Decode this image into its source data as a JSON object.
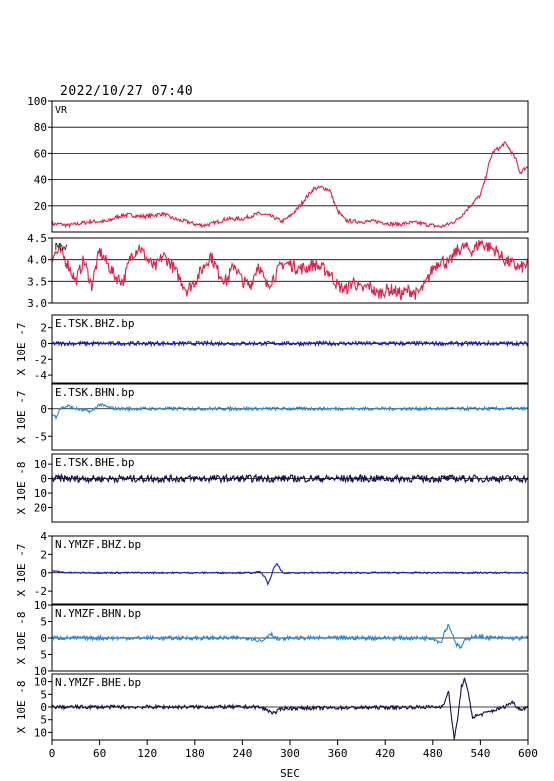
{
  "header": {
    "datetime": "2022/10/27 07:40"
  },
  "chart_data": {
    "type": "line",
    "x_range": [
      0,
      600
    ],
    "x_ticks": [
      0,
      60,
      120,
      180,
      240,
      300,
      360,
      420,
      480,
      540,
      600
    ],
    "xlabel": "SEC",
    "panels": [
      {
        "id": "vr",
        "label": "VR",
        "ylabel": "",
        "color": "#e0204a",
        "ylim": [
          0,
          100
        ],
        "yticks": [
          20,
          40,
          60,
          80,
          100
        ],
        "ytick_labels": [
          "20",
          "40",
          "60",
          "80",
          "100"
        ],
        "grid_y": [
          20,
          40,
          60,
          80
        ],
        "x": [
          0,
          10,
          20,
          30,
          40,
          50,
          60,
          70,
          80,
          90,
          100,
          110,
          120,
          130,
          140,
          150,
          160,
          170,
          180,
          190,
          200,
          210,
          220,
          230,
          240,
          250,
          260,
          270,
          280,
          290,
          300,
          310,
          320,
          330,
          340,
          350,
          360,
          370,
          380,
          390,
          400,
          410,
          420,
          430,
          440,
          450,
          460,
          470,
          480,
          490,
          500,
          510,
          520,
          530,
          540,
          545,
          550,
          555,
          560,
          565,
          570,
          575,
          580,
          585,
          590,
          595,
          600
        ],
        "y": [
          6,
          6,
          5,
          6,
          7,
          8,
          8,
          8,
          11,
          13,
          13,
          12,
          12,
          13,
          14,
          11,
          9,
          8,
          6,
          5,
          6,
          8,
          10,
          10,
          10,
          12,
          14,
          13,
          11,
          8,
          12,
          18,
          26,
          33,
          34,
          32,
          16,
          9,
          8,
          8,
          8,
          8,
          7,
          6,
          6,
          7,
          7,
          6,
          5,
          4,
          6,
          9,
          15,
          22,
          28,
          38,
          50,
          60,
          63,
          64,
          68,
          65,
          60,
          55,
          45,
          48,
          50
        ],
        "noise": 1.5
      },
      {
        "id": "mw",
        "label": "Mw",
        "ylabel": "",
        "color": "#e0204a",
        "ylim": [
          3.0,
          4.5
        ],
        "yticks": [
          3.0,
          3.5,
          4.0,
          4.5
        ],
        "ytick_labels": [
          "3.0",
          "3.5",
          "4.0",
          "4.5"
        ],
        "grid_y": [
          3.5,
          4.0
        ],
        "x": [
          0,
          10,
          20,
          30,
          40,
          50,
          60,
          70,
          80,
          90,
          100,
          110,
          120,
          130,
          140,
          150,
          160,
          170,
          180,
          190,
          200,
          210,
          220,
          230,
          240,
          250,
          260,
          270,
          280,
          290,
          300,
          310,
          320,
          330,
          340,
          350,
          360,
          370,
          380,
          390,
          400,
          410,
          420,
          430,
          440,
          450,
          460,
          470,
          480,
          490,
          500,
          510,
          520,
          530,
          540,
          550,
          560,
          570,
          580,
          590,
          600
        ],
        "y": [
          4.1,
          4.2,
          3.9,
          3.5,
          4.0,
          3.4,
          4.2,
          3.9,
          3.6,
          3.5,
          4.1,
          4.3,
          4.0,
          3.8,
          4.1,
          3.9,
          3.6,
          3.3,
          3.5,
          3.8,
          4.1,
          3.7,
          3.5,
          3.9,
          3.5,
          3.4,
          3.9,
          3.4,
          3.6,
          3.9,
          3.9,
          3.8,
          3.8,
          3.9,
          3.8,
          3.7,
          3.4,
          3.3,
          3.5,
          3.3,
          3.4,
          3.2,
          3.3,
          3.3,
          3.2,
          3.3,
          3.2,
          3.4,
          3.8,
          4.0,
          3.9,
          4.2,
          4.3,
          4.2,
          4.4,
          4.3,
          4.2,
          4.0,
          3.9,
          3.8,
          3.9
        ],
        "noise": 0.15
      },
      {
        "id": "e-tsk-bhz",
        "label": "E.TSK.BHZ.bp",
        "ylabel": "X 10E -7",
        "color": "#1b1bb0",
        "ylim": [
          -5,
          3.6
        ],
        "yticks": [
          -4,
          -2,
          0,
          2
        ],
        "ytick_labels": [
          "-4",
          "-2",
          "0",
          "2"
        ],
        "zero_line": true,
        "x": [
          0,
          600
        ],
        "y": [
          0,
          0
        ],
        "noise": 0.25
      },
      {
        "id": "e-tsk-bhn",
        "label": "E.TSK.BHN.bp",
        "ylabel": "X 10E -7",
        "color": "#2a8ad4",
        "ylim": [
          -7.5,
          4.5
        ],
        "yticks": [
          -5,
          0
        ],
        "ytick_labels": [
          "-5",
          "0"
        ],
        "zero_line": true,
        "x": [
          0,
          5,
          10,
          20,
          30,
          40,
          50,
          60,
          70,
          80,
          600
        ],
        "y": [
          -1,
          -1.5,
          0,
          0.5,
          0,
          -0.3,
          -0.5,
          0.8,
          0.3,
          0,
          0
        ],
        "noise": 0.3
      },
      {
        "id": "e-tsk-bhe",
        "label": "E.TSK.BHE.bp",
        "ylabel": "X 10E -8",
        "color": "#10104a",
        "ylim": [
          -30,
          17
        ],
        "yticks": [
          -20,
          -10,
          0,
          10
        ],
        "ytick_labels": [
          "20",
          "10",
          "0",
          "10"
        ],
        "zero_line": true,
        "x": [
          0,
          600
        ],
        "y": [
          0,
          0
        ],
        "noise": 2.5
      },
      {
        "id": "n-ymzf-bhz",
        "label": "N.YMZF.BHZ.bp",
        "ylabel": "X 10E -7",
        "color": "#1b1bb0",
        "ylim": [
          -3.4,
          4
        ],
        "yticks": [
          -2,
          0,
          2,
          4
        ],
        "ytick_labels": [
          "-2",
          "0",
          "2",
          "4"
        ],
        "zero_line": true,
        "x": [
          0,
          10,
          20,
          60,
          150,
          240,
          255,
          262,
          268,
          272,
          276,
          280,
          284,
          288,
          292,
          300,
          310,
          600
        ],
        "y": [
          0.2,
          0.1,
          0,
          0,
          0,
          0,
          0,
          0.1,
          -0.4,
          -1.2,
          -0.5,
          0.6,
          1.0,
          0.3,
          -0.1,
          0,
          0,
          0
        ],
        "noise": 0.08
      },
      {
        "id": "n-ymzf-bhn",
        "label": "N.YMZF.BHN.bp",
        "ylabel": "X 10E -8",
        "color": "#2a8ad4",
        "ylim": [
          -10,
          10
        ],
        "yticks": [
          -10,
          -5,
          0,
          5,
          10
        ],
        "ytick_labels": [
          "10",
          "5",
          "0",
          "5",
          "10"
        ],
        "zero_line": true,
        "x": [
          0,
          250,
          265,
          275,
          285,
          300,
          480,
          490,
          495,
          500,
          505,
          510,
          515,
          520,
          530,
          560,
          600
        ],
        "y": [
          0,
          0,
          -1,
          1.5,
          -0.5,
          0,
          0,
          -1.5,
          2,
          4,
          1,
          -2,
          -3,
          -1,
          0.5,
          0,
          0
        ],
        "noise": 0.6
      },
      {
        "id": "n-ymzf-bhe",
        "label": "N.YMZF.BHE.bp",
        "ylabel": "X 10E -8",
        "color": "#10104a",
        "ylim": [
          -13,
          13
        ],
        "yticks": [
          -10,
          -5,
          0,
          5,
          10
        ],
        "ytick_labels": [
          "10",
          "5",
          "0",
          "5",
          "10"
        ],
        "zero_line": true,
        "x": [
          0,
          260,
          270,
          280,
          290,
          490,
          495,
          500,
          503,
          507,
          512,
          516,
          520,
          525,
          530,
          540,
          570,
          580,
          590,
          600
        ],
        "y": [
          0,
          0,
          -1,
          -2.5,
          -0.5,
          0,
          2,
          6,
          -2,
          -13,
          -3,
          8,
          11,
          5,
          -4,
          -3,
          0,
          2,
          -1,
          0
        ],
        "noise": 0.7
      }
    ]
  }
}
